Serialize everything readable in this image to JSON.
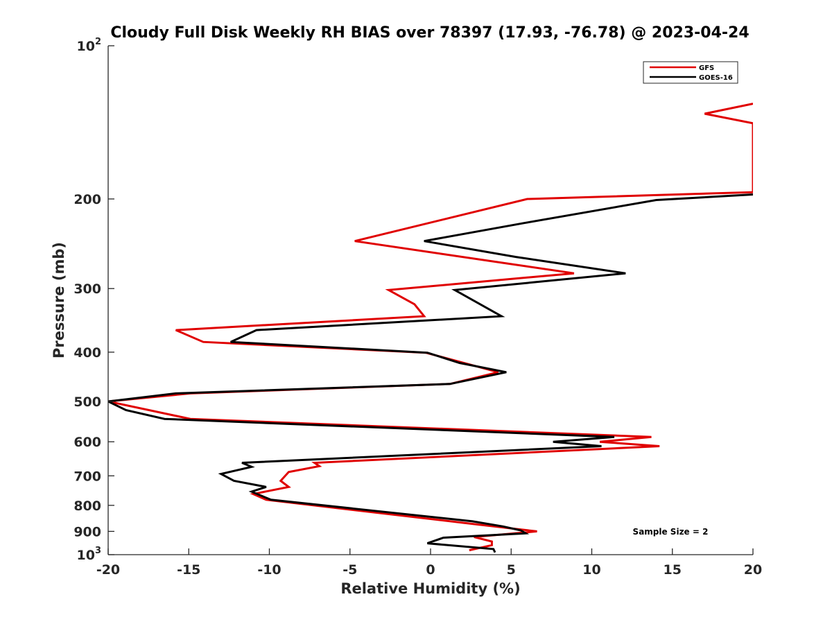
{
  "chart_data": {
    "type": "line",
    "title": "Cloudy Full Disk Weekly RH BIAS over 78397 (17.93, -76.78) @ 2023-04-24",
    "xlabel": "Relative Humidity (%)",
    "ylabel": "Pressure (mb)",
    "xlim": [
      -20,
      20
    ],
    "ylim": [
      100,
      1000
    ],
    "y_scale": "log",
    "y_reversed": true,
    "grid": false,
    "legend_position": "top-right",
    "x_ticks": [
      -20,
      -15,
      -10,
      -5,
      0,
      5,
      10,
      15,
      20
    ],
    "y_ticks": [
      {
        "value": 100,
        "base": "10",
        "exp": "2"
      },
      {
        "value": 200,
        "text": "200"
      },
      {
        "value": 300,
        "text": "300"
      },
      {
        "value": 400,
        "text": "400"
      },
      {
        "value": 500,
        "text": "500"
      },
      {
        "value": 600,
        "text": "600"
      },
      {
        "value": 700,
        "text": "700"
      },
      {
        "value": 800,
        "text": "800"
      },
      {
        "value": 900,
        "text": "900"
      },
      {
        "value": 1000,
        "base": "10",
        "exp": "3"
      }
    ],
    "annotation": "Sample Size = 2",
    "series": [
      {
        "name": "GFS",
        "color": "#e00000",
        "points": [
          [
            20,
            130
          ],
          [
            17,
            136
          ],
          [
            20,
            142
          ],
          [
            20,
            194
          ],
          [
            6,
            200
          ],
          [
            -4.7,
            242
          ],
          [
            8.9,
            280
          ],
          [
            -2.6,
            302
          ],
          [
            -1,
            322
          ],
          [
            -0.4,
            340
          ],
          [
            -15.8,
            362
          ],
          [
            -14.1,
            382
          ],
          [
            -0.3,
            401
          ],
          [
            4.2,
            438
          ],
          [
            1.2,
            462
          ],
          [
            -14.9,
            482
          ],
          [
            -20,
            500
          ],
          [
            -14.9,
            541
          ],
          [
            13.7,
            587
          ],
          [
            10.5,
            600
          ],
          [
            14.2,
            612
          ],
          [
            -7.2,
            660
          ],
          [
            -6.9,
            670
          ],
          [
            -8.8,
            688
          ],
          [
            -9.3,
            716
          ],
          [
            -8.8,
            736
          ],
          [
            -11,
            760
          ],
          [
            -10.2,
            780
          ],
          [
            2.6,
            870
          ],
          [
            6.6,
            900
          ],
          [
            2.7,
            923
          ],
          [
            3.8,
            942
          ],
          [
            3.8,
            958
          ],
          [
            2.4,
            980
          ]
        ]
      },
      {
        "name": "GOES-16",
        "color": "#000000",
        "points": [
          [
            20,
            196
          ],
          [
            14,
            201
          ],
          [
            5.8,
            223
          ],
          [
            -0.4,
            242
          ],
          [
            5.3,
            260
          ],
          [
            12.1,
            280
          ],
          [
            1.5,
            302
          ],
          [
            4.4,
            340
          ],
          [
            -10.8,
            362
          ],
          [
            -12.4,
            382
          ],
          [
            -0.2,
            401
          ],
          [
            1.8,
            420
          ],
          [
            4.7,
            438
          ],
          [
            1.2,
            462
          ],
          [
            -15.8,
            482
          ],
          [
            -20,
            500
          ],
          [
            -18.9,
            520
          ],
          [
            -16.5,
            541
          ],
          [
            11.4,
            587
          ],
          [
            7.6,
            600
          ],
          [
            10.6,
            612
          ],
          [
            -11.7,
            660
          ],
          [
            -11.1,
            672
          ],
          [
            -13,
            694
          ],
          [
            -12.2,
            716
          ],
          [
            -10.2,
            736
          ],
          [
            -11.1,
            752
          ],
          [
            -9.9,
            780
          ],
          [
            2.6,
            860
          ],
          [
            4.5,
            880
          ],
          [
            5.6,
            896
          ],
          [
            5.9,
            908
          ],
          [
            0.8,
            926
          ],
          [
            -0.2,
            950
          ],
          [
            3.9,
            975
          ],
          [
            4,
            990
          ]
        ]
      }
    ]
  }
}
